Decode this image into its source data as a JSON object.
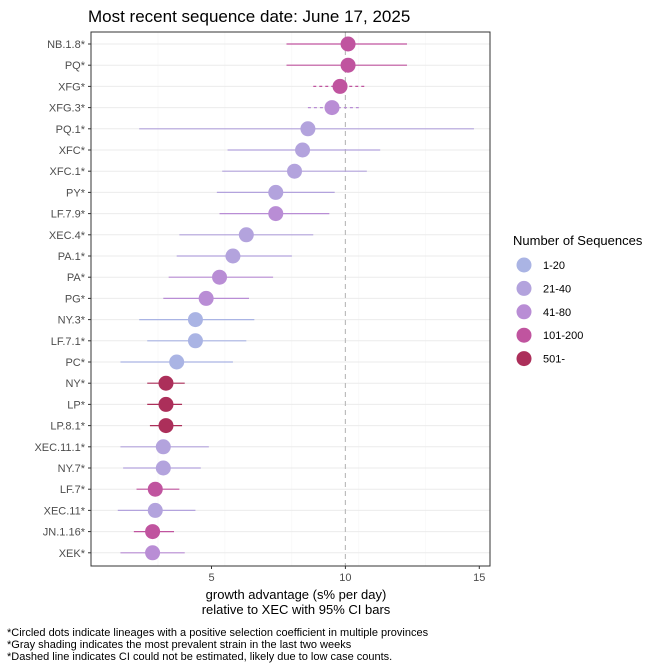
{
  "chart_data": {
    "type": "scatter",
    "title": "Most recent sequence date: June 17, 2025",
    "xlabel_lines": [
      "growth advantage (s% per day)",
      "relative to  XEC  with 95% CI bars"
    ],
    "ylabel": "",
    "xlim": [
      0.5,
      15.4
    ],
    "xticks": [
      5,
      10,
      15
    ],
    "reference_x": 10,
    "grid": true,
    "legend": {
      "title": "Number of Sequences",
      "placement": "right",
      "items": [
        {
          "label": "1-20",
          "color": "#aab4e4"
        },
        {
          "label": "21-40",
          "color": "#b3a3dd"
        },
        {
          "label": "41-80",
          "color": "#b98dd5"
        },
        {
          "label": "101-200",
          "color": "#c0549f"
        },
        {
          "label": "501-",
          "color": "#ac2f5a"
        }
      ]
    },
    "points": [
      {
        "label": "NB.1.8*",
        "value": 10.1,
        "low": 7.8,
        "high": 12.3,
        "group": "101-200",
        "dashed": false
      },
      {
        "label": "PQ*",
        "value": 10.1,
        "low": 7.8,
        "high": 12.3,
        "group": "101-200",
        "dashed": false
      },
      {
        "label": "XFG*",
        "value": 9.8,
        "low": 8.8,
        "high": 10.8,
        "group": "101-200",
        "dashed": true
      },
      {
        "label": "XFG.3*",
        "value": 9.5,
        "low": 8.6,
        "high": 10.5,
        "group": "41-80",
        "dashed": true
      },
      {
        "label": "PQ.1*",
        "value": 8.6,
        "low": 2.3,
        "high": 14.8,
        "group": "21-40",
        "dashed": false
      },
      {
        "label": "XFC*",
        "value": 8.4,
        "low": 5.6,
        "high": 11.3,
        "group": "21-40",
        "dashed": false
      },
      {
        "label": "XFC.1*",
        "value": 8.1,
        "low": 5.4,
        "high": 10.8,
        "group": "21-40",
        "dashed": false
      },
      {
        "label": "PY*",
        "value": 7.4,
        "low": 5.2,
        "high": 9.6,
        "group": "21-40",
        "dashed": false
      },
      {
        "label": "LF.7.9*",
        "value": 7.4,
        "low": 5.3,
        "high": 9.4,
        "group": "41-80",
        "dashed": false
      },
      {
        "label": "XEC.4*",
        "value": 6.3,
        "low": 3.8,
        "high": 8.8,
        "group": "21-40",
        "dashed": false
      },
      {
        "label": "PA.1*",
        "value": 5.8,
        "low": 3.7,
        "high": 8.0,
        "group": "21-40",
        "dashed": false
      },
      {
        "label": "PA*",
        "value": 5.3,
        "low": 3.4,
        "high": 7.3,
        "group": "41-80",
        "dashed": false
      },
      {
        "label": "PG*",
        "value": 4.8,
        "low": 3.2,
        "high": 6.4,
        "group": "41-80",
        "dashed": false
      },
      {
        "label": "NY.3*",
        "value": 4.4,
        "low": 2.3,
        "high": 6.6,
        "group": "1-20",
        "dashed": false
      },
      {
        "label": "LF.7.1*",
        "value": 4.4,
        "low": 2.6,
        "high": 6.3,
        "group": "1-20",
        "dashed": false
      },
      {
        "label": "PC*",
        "value": 3.7,
        "low": 1.6,
        "high": 5.8,
        "group": "1-20",
        "dashed": false
      },
      {
        "label": "NY*",
        "value": 3.3,
        "low": 2.6,
        "high": 4.0,
        "group": "501-",
        "dashed": false
      },
      {
        "label": "LP*",
        "value": 3.3,
        "low": 2.6,
        "high": 3.9,
        "group": "501-",
        "dashed": false
      },
      {
        "label": "LP.8.1*",
        "value": 3.3,
        "low": 2.7,
        "high": 3.9,
        "group": "501-",
        "dashed": false
      },
      {
        "label": "XEC.11.1*",
        "value": 3.2,
        "low": 1.6,
        "high": 4.9,
        "group": "21-40",
        "dashed": false
      },
      {
        "label": "NY.7*",
        "value": 3.2,
        "low": 1.7,
        "high": 4.6,
        "group": "21-40",
        "dashed": false
      },
      {
        "label": "LF.7*",
        "value": 2.9,
        "low": 2.2,
        "high": 3.8,
        "group": "101-200",
        "dashed": false
      },
      {
        "label": "XEC.11*",
        "value": 2.9,
        "low": 1.5,
        "high": 4.4,
        "group": "21-40",
        "dashed": false
      },
      {
        "label": "JN.1.16*",
        "value": 2.8,
        "low": 2.1,
        "high": 3.6,
        "group": "101-200",
        "dashed": false
      },
      {
        "label": "XEK*",
        "value": 2.8,
        "low": 1.6,
        "high": 4.0,
        "group": "41-80",
        "dashed": false
      }
    ]
  },
  "footnotes": [
    "*Circled dots indicate lineages with a positive selection coefficient in multiple provinces",
    "*Gray shading indicates the most prevalent strain in the last two weeks",
    "*Dashed line indicates CI could not be estimated, likely due to low case counts."
  ]
}
